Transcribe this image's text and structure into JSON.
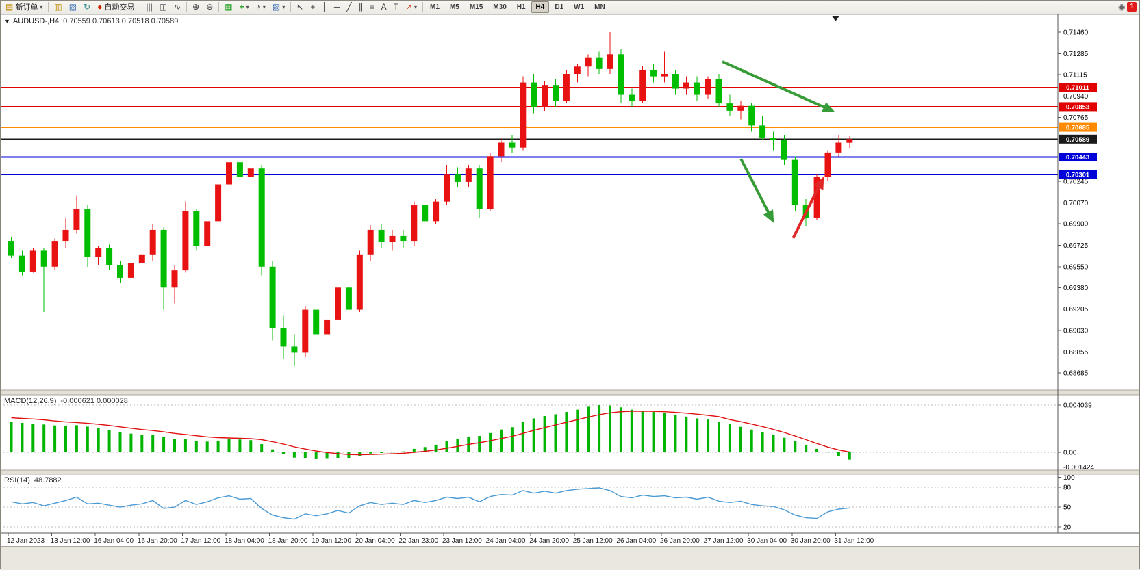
{
  "toolbar": {
    "new_order_label": "新订单",
    "autotrading_label": "自动交易",
    "timeframes": [
      "M1",
      "M5",
      "M15",
      "M30",
      "H1",
      "H4",
      "D1",
      "W1",
      "MN"
    ],
    "active_timeframe": "H4",
    "notification_count": "1"
  },
  "icons": {
    "dropdown": "▾",
    "new_order": "▤",
    "chart_window": "▥",
    "profiles": "▧",
    "refresh": "↻",
    "autotrading": "●",
    "bar_chart": "|||",
    "candle_chart": "◫",
    "line_chart": "∿",
    "zoom_in": "⊕",
    "zoom_out": "⊖",
    "tile_windows": "▦",
    "indicators": "+",
    "periods": "◔",
    "templates": "▨",
    "cursor": "↖",
    "crosshair": "+",
    "vline": "│",
    "hline": "─",
    "trendline": "╱",
    "channel": "∥",
    "fibonacci": "≡",
    "text_tool": "A",
    "label_tool": "T",
    "shapes": "↗",
    "community": "◉",
    "oneclick_arrow": "▼",
    "shift_marker": "▼"
  },
  "chart": {
    "symbol_title": "AUDUSD-,H4",
    "ohlc_text": "0.70559 0.70613 0.70518 0.70589"
  },
  "chart_data": {
    "type": "candlestick",
    "symbol": "AUDUSD-",
    "timeframe": "H4",
    "bull_color": "#e81212",
    "bear_color": "#00bd00",
    "current_ohlc": {
      "open": 0.70559,
      "high": 0.70613,
      "low": 0.70518,
      "close": 0.70589
    },
    "price_axis": {
      "top_price": 0.7146,
      "bottom_price": 0.68685,
      "tick_labels": [
        "0.71460",
        "0.71285",
        "0.71115",
        "0.70940",
        "0.70765",
        "0.70245",
        "0.70070",
        "0.69900",
        "0.69725",
        "0.69550",
        "0.69380",
        "0.69205",
        "0.69030",
        "0.68855",
        "0.68685"
      ]
    },
    "hlines": [
      {
        "price": 0.71011,
        "color": "#e00000",
        "tag": "0.71011",
        "w": 1.4
      },
      {
        "price": 0.70853,
        "color": "#e00000",
        "tag": "0.70853",
        "w": 1.4
      },
      {
        "price": 0.70685,
        "color": "#ff8a00",
        "tag": "0.70685",
        "w": 2
      },
      {
        "price": 0.70589,
        "color": "#1a1a1a",
        "tag": "0.70589",
        "w": 1.4
      },
      {
        "price": 0.70443,
        "color": "#0000d8",
        "tag": "0.70443",
        "w": 2
      },
      {
        "price": 0.70301,
        "color": "#0000d8",
        "tag": "0.70301",
        "w": 2
      }
    ],
    "candles": [
      [
        0.6976,
        0.6979,
        0.6962,
        0.6964
      ],
      [
        0.6964,
        0.6968,
        0.6948,
        0.6951
      ],
      [
        0.6951,
        0.697,
        0.695,
        0.6968
      ],
      [
        0.6968,
        0.697,
        0.6918,
        0.6955
      ],
      [
        0.6955,
        0.6978,
        0.6952,
        0.6976
      ],
      [
        0.6976,
        0.6995,
        0.697,
        0.6985
      ],
      [
        0.6985,
        0.7013,
        0.6982,
        0.7002
      ],
      [
        0.7002,
        0.7005,
        0.6955,
        0.6963
      ],
      [
        0.6963,
        0.6972,
        0.6956,
        0.697
      ],
      [
        0.697,
        0.6973,
        0.6952,
        0.6956
      ],
      [
        0.6956,
        0.696,
        0.6942,
        0.6946
      ],
      [
        0.6946,
        0.696,
        0.6943,
        0.6958
      ],
      [
        0.6958,
        0.697,
        0.695,
        0.6965
      ],
      [
        0.6965,
        0.699,
        0.696,
        0.6985
      ],
      [
        0.6985,
        0.6987,
        0.692,
        0.6938
      ],
      [
        0.6938,
        0.6956,
        0.6925,
        0.6952
      ],
      [
        0.6952,
        0.7008,
        0.695,
        0.7
      ],
      [
        0.7,
        0.7002,
        0.6968,
        0.6972
      ],
      [
        0.6972,
        0.6995,
        0.697,
        0.6992
      ],
      [
        0.6992,
        0.7025,
        0.699,
        0.7022
      ],
      [
        0.7022,
        0.7066,
        0.7015,
        0.704
      ],
      [
        0.704,
        0.7048,
        0.7018,
        0.7028
      ],
      [
        0.7028,
        0.7042,
        0.7025,
        0.7035
      ],
      [
        0.7035,
        0.7038,
        0.6948,
        0.6955
      ],
      [
        0.6955,
        0.696,
        0.6895,
        0.6905
      ],
      [
        0.6905,
        0.6915,
        0.688,
        0.689
      ],
      [
        0.689,
        0.69,
        0.6874,
        0.6885
      ],
      [
        0.6885,
        0.6923,
        0.6882,
        0.692
      ],
      [
        0.692,
        0.6925,
        0.6895,
        0.69
      ],
      [
        0.69,
        0.6915,
        0.689,
        0.6912
      ],
      [
        0.6912,
        0.694,
        0.6905,
        0.6938
      ],
      [
        0.6938,
        0.6942,
        0.6915,
        0.692
      ],
      [
        0.692,
        0.6968,
        0.6918,
        0.6965
      ],
      [
        0.6965,
        0.6989,
        0.696,
        0.6985
      ],
      [
        0.6985,
        0.699,
        0.697,
        0.6975
      ],
      [
        0.6975,
        0.6985,
        0.6968,
        0.698
      ],
      [
        0.698,
        0.6985,
        0.697,
        0.6976
      ],
      [
        0.6976,
        0.7008,
        0.6972,
        0.7005
      ],
      [
        0.7005,
        0.7007,
        0.6988,
        0.6992
      ],
      [
        0.6992,
        0.701,
        0.699,
        0.7008
      ],
      [
        0.7008,
        0.7038,
        0.7005,
        0.703
      ],
      [
        0.703,
        0.7036,
        0.702,
        0.7024
      ],
      [
        0.7024,
        0.7038,
        0.702,
        0.7035
      ],
      [
        0.7035,
        0.7038,
        0.6995,
        0.7002
      ],
      [
        0.7002,
        0.7048,
        0.7,
        0.7045
      ],
      [
        0.7045,
        0.706,
        0.704,
        0.7056
      ],
      [
        0.7056,
        0.7062,
        0.7048,
        0.7052
      ],
      [
        0.7052,
        0.711,
        0.705,
        0.7105
      ],
      [
        0.7105,
        0.7112,
        0.708,
        0.7085
      ],
      [
        0.7085,
        0.7106,
        0.7082,
        0.7103
      ],
      [
        0.7103,
        0.7108,
        0.7085,
        0.709
      ],
      [
        0.709,
        0.7115,
        0.7088,
        0.7112
      ],
      [
        0.7112,
        0.712,
        0.7105,
        0.7118
      ],
      [
        0.7118,
        0.7128,
        0.711,
        0.7125
      ],
      [
        0.7125,
        0.713,
        0.7112,
        0.7116
      ],
      [
        0.7116,
        0.7146,
        0.7112,
        0.7128
      ],
      [
        0.7128,
        0.7132,
        0.7088,
        0.7095
      ],
      [
        0.7095,
        0.71,
        0.7085,
        0.709
      ],
      [
        0.709,
        0.7118,
        0.7088,
        0.7115
      ],
      [
        0.7115,
        0.712,
        0.7105,
        0.711
      ],
      [
        0.711,
        0.713,
        0.7105,
        0.7112
      ],
      [
        0.7112,
        0.7115,
        0.7095,
        0.71
      ],
      [
        0.71,
        0.711,
        0.7095,
        0.7105
      ],
      [
        0.7105,
        0.711,
        0.709,
        0.7095
      ],
      [
        0.7095,
        0.711,
        0.7092,
        0.7108
      ],
      [
        0.7108,
        0.7112,
        0.7085,
        0.7088
      ],
      [
        0.7088,
        0.7095,
        0.7078,
        0.7082
      ],
      [
        0.7082,
        0.709,
        0.7075,
        0.7086
      ],
      [
        0.7086,
        0.7088,
        0.7065,
        0.707
      ],
      [
        0.707,
        0.7078,
        0.7058,
        0.706
      ],
      [
        0.706,
        0.7065,
        0.705,
        0.7058
      ],
      [
        0.7058,
        0.7062,
        0.7038,
        0.7042
      ],
      [
        0.7042,
        0.7045,
        0.7,
        0.7005
      ],
      [
        0.7005,
        0.701,
        0.6988,
        0.6995
      ],
      [
        0.6995,
        0.703,
        0.6993,
        0.7028
      ],
      [
        0.7028,
        0.705,
        0.7025,
        0.7048
      ],
      [
        0.7048,
        0.7062,
        0.7045,
        0.7056
      ],
      [
        0.70559,
        0.70613,
        0.70518,
        0.70589
      ]
    ],
    "arrows": [
      {
        "xi1": 65.6,
        "p1": 0.7122,
        "xi2": 75.7,
        "p2": 0.70819,
        "color": "#379b37",
        "w": 4
      },
      {
        "xi1": 67.3,
        "p1": 0.70429,
        "xi2": 70.2,
        "p2": 0.69928,
        "color": "#379b37",
        "w": 4
      },
      {
        "xi1": 72.1,
        "p1": 0.69783,
        "xi2": 74.8,
        "p2": 0.70262,
        "color": "#e02828",
        "w": 4
      }
    ],
    "time_axis": [
      "12 Jan 2023",
      "13 Jan 12:00",
      "16 Jan 04:00",
      "16 Jan 20:00",
      "17 Jan 12:00",
      "18 Jan 04:00",
      "18 Jan 20:00",
      "19 Jan 12:00",
      "20 Jan 04:00",
      "22 Jan 23:00",
      "23 Jan 12:00",
      "24 Jan 04:00",
      "24 Jan 20:00",
      "25 Jan 12:00",
      "26 Jan 04:00",
      "26 Jan 20:00",
      "27 Jan 12:00",
      "30 Jan 04:00",
      "30 Jan 20:00",
      "31 Jan 12:00"
    ],
    "macd": {
      "label": "MACD(12,26,9)",
      "values_text": "-0.000621 0.000028",
      "color": "#00b400",
      "signal_color": "#e01010",
      "max": 0.004039,
      "min": -0.001424,
      "axis_labels": [
        "0.004039",
        "0.00",
        "-0.001424"
      ],
      "histogram": [
        0.0026,
        0.00252,
        0.00245,
        0.00238,
        0.0023,
        0.00228,
        0.00232,
        0.0022,
        0.00205,
        0.0019,
        0.00172,
        0.0016,
        0.0015,
        0.00148,
        0.0013,
        0.00112,
        0.00115,
        0.001,
        0.00092,
        0.001,
        0.00112,
        0.0011,
        0.00104,
        0.0007,
        0.00025,
        -0.00015,
        -0.00045,
        -0.0005,
        -0.00058,
        -0.00055,
        -0.00048,
        -0.0005,
        -0.0003,
        -0.0001,
        -5e-05,
        5e-05,
        8e-05,
        0.0003,
        0.00045,
        0.00065,
        0.00095,
        0.00115,
        0.00135,
        0.0014,
        0.00165,
        0.00195,
        0.00215,
        0.0026,
        0.0029,
        0.0031,
        0.00325,
        0.00345,
        0.00365,
        0.0039,
        0.00404,
        0.004,
        0.00385,
        0.00365,
        0.00355,
        0.00345,
        0.00335,
        0.0032,
        0.00305,
        0.0029,
        0.0028,
        0.00262,
        0.0024,
        0.00218,
        0.00195,
        0.0017,
        0.00148,
        0.00125,
        0.00095,
        0.0006,
        0.0003,
        5e-05,
        -0.0003,
        -0.000621
      ],
      "signal": [
        0.00295,
        0.0029,
        0.00285,
        0.00278,
        0.00268,
        0.0026,
        0.00255,
        0.00248,
        0.0024,
        0.0023,
        0.00218,
        0.00206,
        0.00195,
        0.00186,
        0.00175,
        0.00162,
        0.00153,
        0.00142,
        0.00132,
        0.00126,
        0.00123,
        0.0012,
        0.00117,
        0.00108,
        0.00091,
        0.0007,
        0.00047,
        0.00028,
        0.00011,
        -2e-05,
        -0.00011,
        -0.00019,
        -0.00021,
        -0.00019,
        -0.00016,
        -0.00012,
        -8e-05,
        0.0,
        9e-05,
        0.0002,
        0.00035,
        0.00051,
        0.00068,
        0.00082,
        0.00099,
        0.00118,
        0.00137,
        0.00162,
        0.00188,
        0.00212,
        0.00235,
        0.00257,
        0.00279,
        0.00301,
        0.00322,
        0.00338,
        0.00347,
        0.00351,
        0.00352,
        0.0035,
        0.00347,
        0.00342,
        0.00335,
        0.00326,
        0.00316,
        0.00305,
        0.0028,
        0.00262,
        0.00242,
        0.0022,
        0.00196,
        0.0017,
        0.0014,
        0.00108,
        0.00075,
        0.00045,
        0.0002,
        2.8e-05
      ]
    },
    "rsi": {
      "label": "RSI(14)",
      "value_text": "48.7882",
      "color": "#4a9ad4",
      "levels": [
        80,
        50,
        20
      ],
      "axis_labels": [
        "100",
        "80",
        "50",
        "20"
      ],
      "values": [
        58,
        55,
        57,
        52,
        56,
        60,
        65,
        55,
        56,
        53,
        50,
        53,
        55,
        60,
        48,
        50,
        60,
        54,
        58,
        64,
        67,
        62,
        63,
        48,
        38,
        34,
        32,
        40,
        37,
        40,
        45,
        41,
        52,
        57,
        54,
        56,
        54,
        60,
        57,
        60,
        65,
        63,
        65,
        58,
        66,
        69,
        68,
        75,
        71,
        74,
        71,
        75,
        77,
        78,
        79,
        75,
        66,
        64,
        68,
        66,
        67,
        64,
        65,
        62,
        65,
        59,
        57,
        59,
        54,
        52,
        51,
        46,
        38,
        34,
        33,
        43,
        47,
        48.7882
      ]
    }
  }
}
